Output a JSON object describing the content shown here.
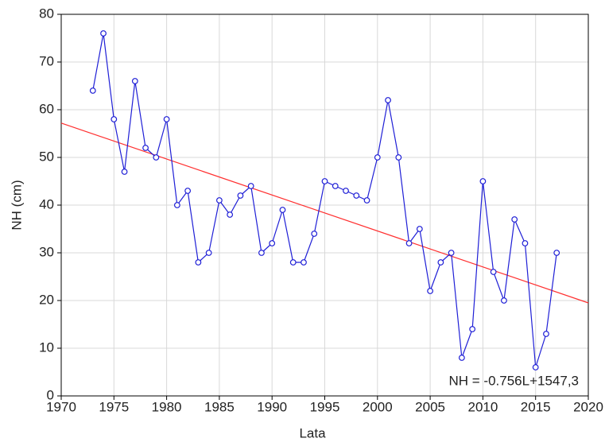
{
  "chart_data": {
    "type": "line",
    "x": [
      1973,
      1974,
      1975,
      1976,
      1977,
      1978,
      1979,
      1980,
      1981,
      1982,
      1983,
      1984,
      1985,
      1986,
      1987,
      1988,
      1989,
      1990,
      1991,
      1992,
      1993,
      1994,
      1995,
      1996,
      1997,
      1998,
      1999,
      2000,
      2001,
      2002,
      2003,
      2004,
      2005,
      2006,
      2007,
      2008,
      2009,
      2010,
      2011,
      2012,
      2013,
      2014,
      2015,
      2016,
      2017
    ],
    "series": [
      {
        "color": "#1f1fd6",
        "values": [
          64,
          76,
          58,
          47,
          66,
          52,
          50,
          58,
          40,
          43,
          28,
          30,
          41,
          38,
          42,
          44,
          30,
          32,
          39,
          28,
          28,
          34,
          45,
          44,
          43,
          42,
          41,
          50,
          62,
          50,
          32,
          35,
          22,
          28,
          30,
          8,
          14,
          45,
          26,
          20,
          37,
          32,
          6,
          13,
          30
        ]
      }
    ],
    "trend_line": {
      "x": [
        1970,
        2020
      ],
      "values": [
        57.2,
        19.5
      ],
      "color": "#ff3030"
    },
    "annotation": "NH = -0.756L+1547,3",
    "xlabel": "Lata",
    "ylabel": "NH (cm)",
    "xlim": [
      1970,
      2020
    ],
    "xticks": [
      1970,
      1975,
      1980,
      1985,
      1990,
      1995,
      2000,
      2005,
      2010,
      2015,
      2020
    ],
    "ylim": [
      0,
      80
    ],
    "yticks": [
      0,
      10,
      20,
      30,
      40,
      50,
      60,
      70,
      80
    ],
    "grid": true
  }
}
